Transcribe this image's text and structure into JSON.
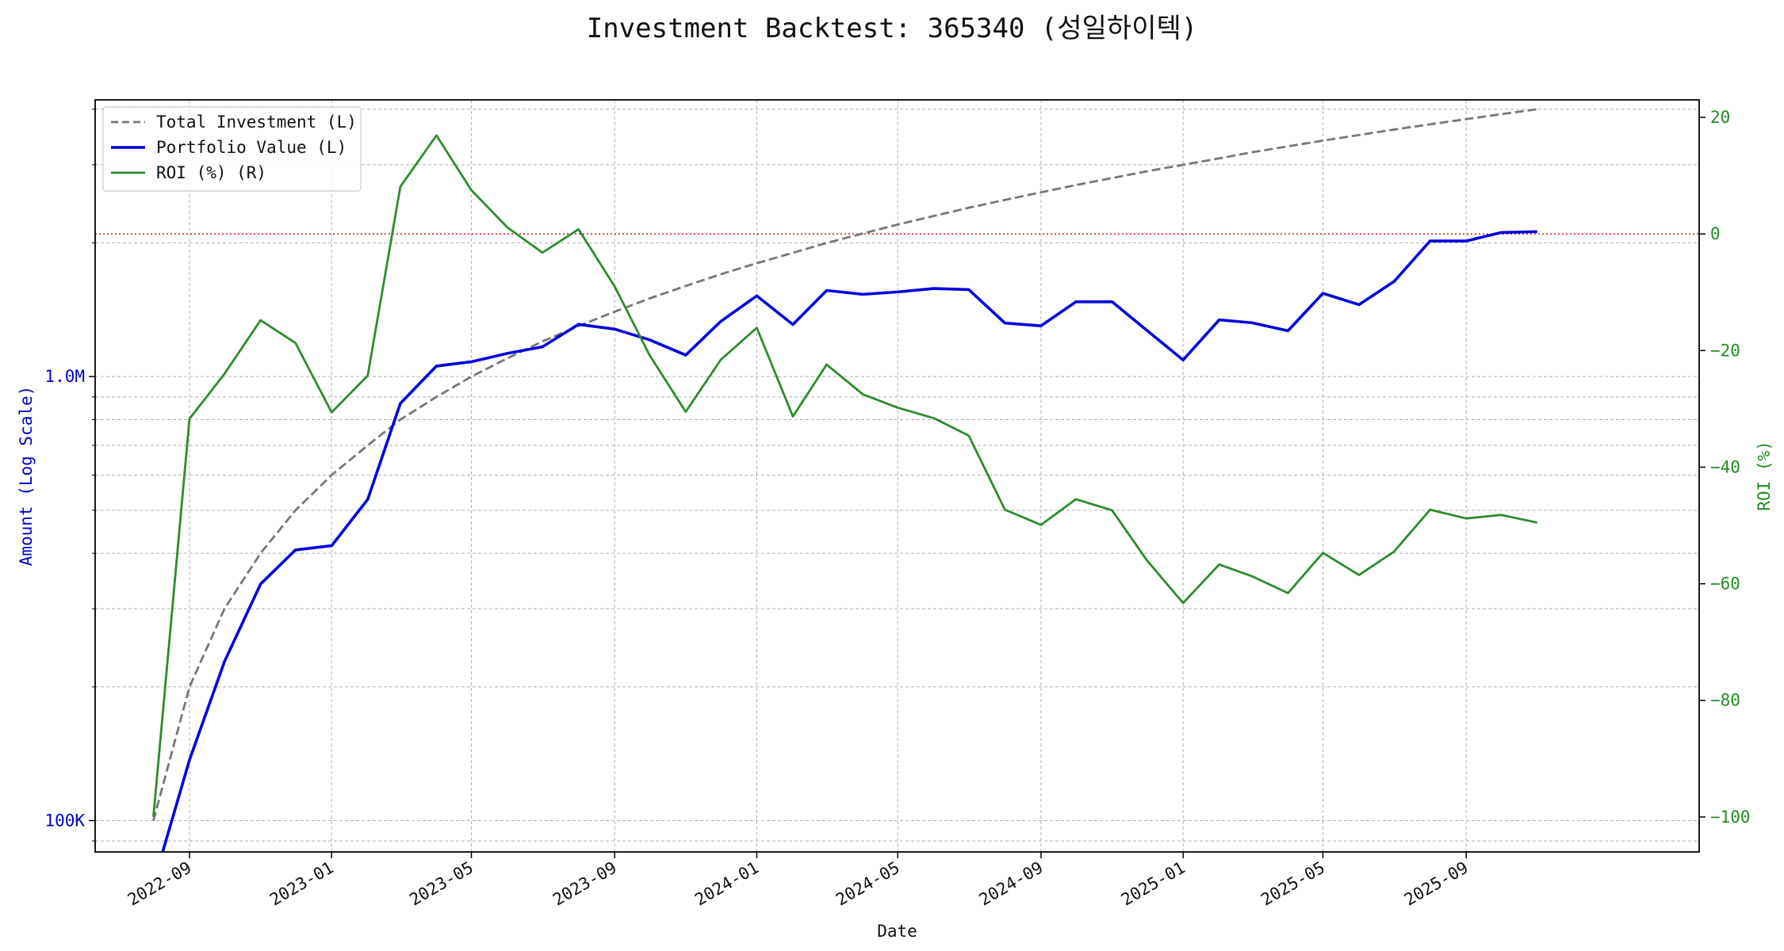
{
  "chart_data": {
    "type": "line",
    "title": "Investment Backtest: 365340 (성일하이텍)",
    "xlabel": "Date",
    "ylabel_left": "Amount (Log Scale)",
    "ylabel_right": "ROI (%)",
    "left_axis": {
      "scale": "log",
      "ylim": [
        85000,
        4200000
      ],
      "ticks": [
        100000,
        1000000
      ],
      "tick_labels": [
        "100K",
        "1.0M"
      ],
      "color": "#0000cc"
    },
    "right_axis": {
      "scale": "linear",
      "ylim": [
        -106,
        23
      ],
      "ticks": [
        -100,
        -80,
        -60,
        -40,
        -20,
        0,
        20
      ],
      "tick_labels": [
        "−100",
        "−80",
        "−60",
        "−40",
        "−20",
        "0",
        "20"
      ],
      "color": "#228b22"
    },
    "x_axis": {
      "type": "date",
      "range": [
        "2022-06-12",
        "2026-03-20"
      ],
      "ticks": [
        "2022-09-01",
        "2023-01-01",
        "2023-05-01",
        "2023-09-01",
        "2024-01-01",
        "2024-05-01",
        "2024-09-01",
        "2025-01-01",
        "2025-05-01",
        "2025-09-01"
      ],
      "tick_labels": [
        "2022-09",
        "2023-01",
        "2023-05",
        "2023-09",
        "2024-01",
        "2024-05",
        "2024-09",
        "2025-01",
        "2025-05",
        "2025-09"
      ]
    },
    "grid": true,
    "legend": {
      "placement": "top-left",
      "entries": [
        "Total Investment (L)",
        "Portfolio Value (L)",
        "ROI (%) (R)"
      ]
    },
    "reference_line": {
      "axis": "right",
      "value": 0,
      "color": "#d62728",
      "style": "dotted"
    },
    "dates": [
      "2022-08-01",
      "2022-09-01",
      "2022-10-01",
      "2022-11-01",
      "2022-12-01",
      "2023-01-01",
      "2023-02-01",
      "2023-03-01",
      "2023-04-01",
      "2023-05-01",
      "2023-06-01",
      "2023-07-01",
      "2023-08-01",
      "2023-09-01",
      "2023-10-01",
      "2023-11-01",
      "2023-12-01",
      "2024-01-01",
      "2024-02-01",
      "2024-03-01",
      "2024-04-01",
      "2024-05-01",
      "2024-06-01",
      "2024-07-01",
      "2024-08-01",
      "2024-09-01",
      "2024-10-01",
      "2024-11-01",
      "2024-12-01",
      "2025-01-01",
      "2025-02-01",
      "2025-03-01",
      "2025-04-01",
      "2025-05-01",
      "2025-06-01",
      "2025-07-01",
      "2025-08-01",
      "2025-09-01",
      "2025-10-01",
      "2025-11-01"
    ],
    "series": [
      {
        "name": "Total Investment (L)",
        "axis": "left",
        "color": "#777777",
        "style": "dashed",
        "values": [
          100000,
          200000,
          300000,
          400000,
          500000,
          600000,
          700000,
          800000,
          900000,
          1000000,
          1100000,
          1200000,
          1300000,
          1400000,
          1500000,
          1600000,
          1700000,
          1800000,
          1900000,
          2000000,
          2100000,
          2200000,
          2300000,
          2400000,
          2500000,
          2600000,
          2700000,
          2800000,
          2900000,
          3000000,
          3100000,
          3200000,
          3300000,
          3400000,
          3500000,
          3600000,
          3700000,
          3800000,
          3900000,
          4000000
        ]
      },
      {
        "name": "Portfolio Value (L)",
        "axis": "left",
        "color": "#0000dd",
        "style": "solid",
        "values": [
          0,
          137000,
          228000,
          341000,
          407000,
          416000,
          529000,
          870000,
          1056000,
          1080000,
          1128000,
          1167000,
          1311000,
          1279000,
          1210000,
          1118000,
          1331000,
          1520000,
          1310000,
          1563000,
          1532000,
          1551000,
          1579000,
          1570000,
          1320000,
          1301000,
          1474000,
          1474000,
          1270000,
          1090000,
          1342000,
          1322000,
          1268000,
          1540000,
          1452000,
          1637000,
          2020000,
          2020000,
          2111000,
          2120000
        ]
      },
      {
        "name": "ROI (%) (R)",
        "axis": "right",
        "color": "#2e8b2e",
        "style": "solid",
        "values": [
          -100,
          -31.7,
          -24,
          -14.8,
          -18.7,
          -30.6,
          -24.3,
          8.1,
          16.9,
          7.5,
          1.1,
          -3.2,
          0.8,
          -9,
          -20.8,
          -30.5,
          -21.6,
          -16.1,
          -31.3,
          -22.4,
          -27.5,
          -29.8,
          -31.6,
          -34.6,
          -47.3,
          -49.9,
          -45.5,
          -47.4,
          -56,
          -63.3,
          -56.7,
          -58.7,
          -61.6,
          -54.7,
          -58.5,
          -54.5,
          -47.3,
          -48.8,
          -48.2,
          -49.5
        ]
      }
    ]
  }
}
